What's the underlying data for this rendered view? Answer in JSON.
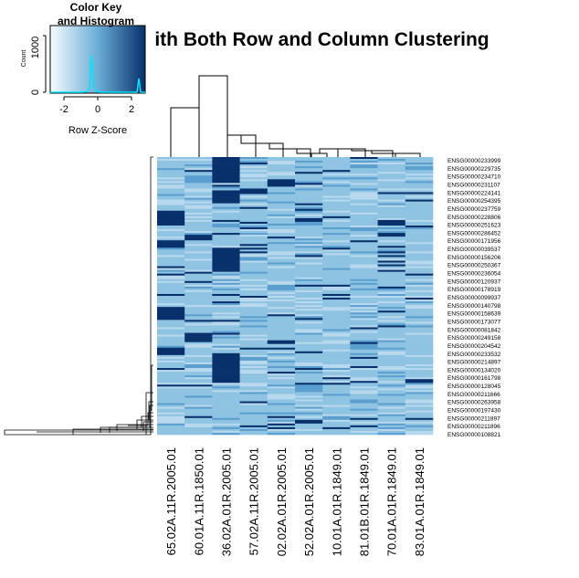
{
  "chart_data": {
    "type": "heatmap",
    "title": "with Both Row and Column Clustering",
    "color_key": {
      "title_line1": "Color Key",
      "title_line2": "and Histogram",
      "xlabel": "Row Z-Score",
      "ylabel": "Count",
      "x_ticks": [
        "-2",
        "0",
        "2"
      ],
      "y_ticks": [
        "0",
        "1000"
      ],
      "low_color": "#f7fbff",
      "high_color": "#08306b",
      "histogram_color": "#00e5ff"
    },
    "colors": {
      "base": "#8ec3e2",
      "light": "#b7d8ed",
      "mid": "#5a9fcf",
      "dark": "#08306b"
    },
    "row_labels": [
      "ENSG00000233999",
      "ENSG00000229735",
      "ENSG00000234710",
      "ENSG00000231107",
      "ENSG00000224141",
      "ENSG00000254395",
      "ENSG00000237759",
      "ENSG00000228806",
      "ENSG00000251623",
      "ENSG00000286452",
      "ENSG00000171956",
      "ENSG00000039537",
      "ENSG00000156206",
      "ENSG00000250367",
      "ENSG00000236054",
      "ENSG00000120937",
      "ENSG00000178919",
      "ENSG00000099937",
      "ENSG00000140798",
      "ENSG00000158639",
      "ENSG00000173077",
      "ENSG00000081842",
      "ENSG00000249158",
      "ENSG00000204542",
      "ENSG00000233532",
      "ENSG00000214897",
      "ENSG00000134020",
      "ENSG00000161798",
      "ENSG00000128045",
      "ENSG00000211666",
      "ENSG00000263958",
      "ENSG00000197430",
      "ENSG00000211897",
      "ENSG00000211896",
      "ENSG00000108821"
    ],
    "column_labels": [
      "65.02A.11R.2005.01",
      "60.01A.11R.1850.01",
      "36.02A.01R.2005.01",
      "57.02A.11R.2005.01",
      "02.02A.01R.2005.01",
      "52.02A.01R.2005.01",
      "10.01A.01R.1849.01",
      "81.01B.01R.1849.01",
      "70.01A.01R.1849.01",
      "83.01A.01R.1849.01"
    ]
  }
}
